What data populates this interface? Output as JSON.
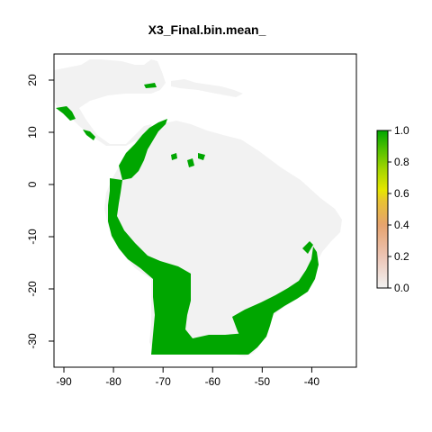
{
  "chart_data": {
    "type": "raster-map",
    "title": "X3_Final.bin.mean_",
    "xlim": [
      -92,
      -31
    ],
    "ylim": [
      -35,
      25
    ],
    "x_ticks": [
      -90,
      -80,
      -70,
      -60,
      -50,
      -40
    ],
    "y_ticks": [
      20,
      10,
      0,
      -10,
      -20,
      -30
    ],
    "x_tick_labels": [
      "-90",
      "-80",
      "-70",
      "-60",
      "-50",
      "-40"
    ],
    "y_tick_labels": [
      "20",
      "10",
      "0",
      "-10",
      "-20",
      "-30"
    ],
    "legend": {
      "range": [
        0,
        1
      ],
      "ticks": [
        0.0,
        0.2,
        0.4,
        0.6,
        0.8,
        1.0
      ],
      "tick_labels": [
        "0.0",
        "0.2",
        "0.4",
        "0.6",
        "0.8",
        "1.0"
      ],
      "placement": "right",
      "colors": [
        "#f2f2f2",
        "#ecc4b4",
        "#e6a36e",
        "#e8c234",
        "#e6e600",
        "#a6d600",
        "#52c000",
        "#00a600"
      ]
    },
    "background_color": "#f2f2f2",
    "suitable_color": "#00a600"
  }
}
